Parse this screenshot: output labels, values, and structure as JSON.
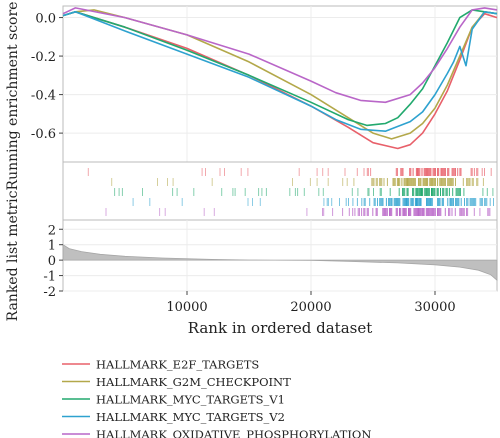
{
  "chart_data": [
    {
      "type": "line",
      "ylabel": "Running enrichment score",
      "xlim": [
        0,
        35000
      ],
      "ylim": [
        -0.75,
        0.06
      ],
      "yticks": [
        "0.0",
        "-0.2",
        "-0.4",
        "-0.6"
      ],
      "ytick_values": [
        0.0,
        -0.2,
        -0.4,
        -0.6
      ],
      "grid": true,
      "series": [
        {
          "name": "HALLMARK_E2F_TARGETS",
          "color": "#e8606a",
          "x": [
            0,
            1000,
            5000,
            10000,
            15000,
            20000,
            23000,
            25000,
            27000,
            28000,
            29000,
            30000,
            31000,
            32000,
            33000,
            34000,
            35000
          ],
          "y": [
            0.01,
            0.03,
            -0.05,
            -0.16,
            -0.3,
            -0.46,
            -0.57,
            -0.65,
            -0.68,
            -0.66,
            -0.6,
            -0.5,
            -0.38,
            -0.22,
            -0.05,
            0.02,
            0.0
          ]
        },
        {
          "name": "HALLMARK_G2M_CHECKPOINT",
          "color": "#b3a84a",
          "x": [
            0,
            1000,
            2500,
            5000,
            10000,
            15000,
            20000,
            23000,
            25000,
            26500,
            28000,
            29000,
            30000,
            31000,
            32000,
            33000,
            34000,
            35000
          ],
          "y": [
            0.01,
            0.03,
            0.04,
            0.0,
            -0.09,
            -0.23,
            -0.4,
            -0.52,
            -0.6,
            -0.63,
            -0.6,
            -0.55,
            -0.47,
            -0.35,
            -0.2,
            -0.05,
            0.03,
            0.02
          ]
        },
        {
          "name": "HALLMARK_MYC_TARGETS_V1",
          "color": "#22a96e",
          "x": [
            0,
            1000,
            5000,
            10000,
            15000,
            20000,
            23000,
            24500,
            26000,
            27000,
            28000,
            29000,
            30000,
            31000,
            32000,
            33000,
            34000,
            35000
          ],
          "y": [
            0.01,
            0.03,
            -0.05,
            -0.17,
            -0.3,
            -0.44,
            -0.53,
            -0.56,
            -0.55,
            -0.52,
            -0.45,
            -0.37,
            -0.25,
            -0.13,
            0.0,
            0.04,
            0.03,
            0.02
          ]
        },
        {
          "name": "HALLMARK_MYC_TARGETS_V2",
          "color": "#2ea2cf",
          "x": [
            0,
            1000,
            5000,
            10000,
            15000,
            20000,
            22000,
            24000,
            26000,
            28000,
            29000,
            30000,
            31000,
            31500,
            32000,
            32500,
            33000,
            34000,
            35000
          ],
          "y": [
            0.01,
            0.03,
            -0.07,
            -0.19,
            -0.31,
            -0.46,
            -0.53,
            -0.58,
            -0.59,
            -0.54,
            -0.49,
            -0.4,
            -0.29,
            -0.23,
            -0.15,
            -0.25,
            -0.06,
            0.03,
            0.02
          ]
        },
        {
          "name": "HALLMARK_OXIDATIVE_PHOSPHORYLATION",
          "color": "#b966c8",
          "x": [
            0,
            1000,
            5000,
            10000,
            15000,
            20000,
            22000,
            24000,
            26000,
            28000,
            29000,
            30000,
            31000,
            32000,
            33000,
            34000,
            35000
          ],
          "y": [
            0.02,
            0.05,
            0.0,
            -0.09,
            -0.19,
            -0.33,
            -0.39,
            -0.43,
            -0.44,
            -0.4,
            -0.34,
            -0.26,
            -0.16,
            -0.05,
            0.04,
            0.05,
            0.04
          ]
        }
      ]
    },
    {
      "type": "scatter",
      "description_kind": "hit-marks",
      "xlim": [
        0,
        35000
      ],
      "rows": [
        {
          "series": "HALLMARK_E2F_TARGETS",
          "color": "#e8606a",
          "density_center": 29500,
          "density_spread": 3800,
          "sparse_start": 2000
        },
        {
          "series": "HALLMARK_G2M_CHECKPOINT",
          "color": "#b3a84a",
          "density_center": 29000,
          "density_spread": 4200,
          "sparse_start": 2000
        },
        {
          "series": "HALLMARK_MYC_TARGETS_V1",
          "color": "#22a96e",
          "density_center": 29500,
          "density_spread": 3500,
          "sparse_start": 2500
        },
        {
          "series": "HALLMARK_MYC_TARGETS_V2",
          "color": "#2ea2cf",
          "density_center": 29000,
          "density_spread": 5000,
          "sparse_start": 3000
        },
        {
          "series": "HALLMARK_OXIDATIVE_PHOSPHORYLATION",
          "color": "#b966c8",
          "density_center": 28000,
          "density_spread": 5500,
          "sparse_start": 1000
        }
      ]
    },
    {
      "type": "area",
      "ylabel": "Ranked list metric",
      "xlabel": "Rank in ordered dataset",
      "xlim": [
        0,
        35000
      ],
      "ylim": [
        -2,
        2.6
      ],
      "yticks": [
        "2",
        "1",
        "0",
        "-1",
        "-2"
      ],
      "ytick_values": [
        2,
        1,
        0,
        -1,
        -2
      ],
      "xticks": [
        "10000",
        "20000",
        "30000"
      ],
      "xtick_values": [
        10000,
        20000,
        30000
      ],
      "grid": true,
      "color": "#bfbfbf",
      "x": [
        0,
        500,
        1500,
        3000,
        5000,
        8000,
        12000,
        15000,
        17000,
        20000,
        23000,
        27000,
        30000,
        32000,
        33500,
        34500,
        35000
      ],
      "y": [
        1.0,
        0.75,
        0.55,
        0.38,
        0.25,
        0.14,
        0.05,
        0.01,
        0.0,
        -0.02,
        -0.08,
        -0.18,
        -0.3,
        -0.45,
        -0.65,
        -0.95,
        -1.3
      ]
    }
  ],
  "legend": {
    "placement": "bottom-left",
    "items": [
      {
        "label": "HALLMARK_E2F_TARGETS",
        "color": "#e8606a"
      },
      {
        "label": "HALLMARK_G2M_CHECKPOINT",
        "color": "#b3a84a"
      },
      {
        "label": "HALLMARK_MYC_TARGETS_V1",
        "color": "#22a96e"
      },
      {
        "label": "HALLMARK_MYC_TARGETS_V2",
        "color": "#2ea2cf"
      },
      {
        "label": "HALLMARK_OXIDATIVE_PHOSPHORYLATION",
        "color": "#b966c8"
      }
    ]
  }
}
